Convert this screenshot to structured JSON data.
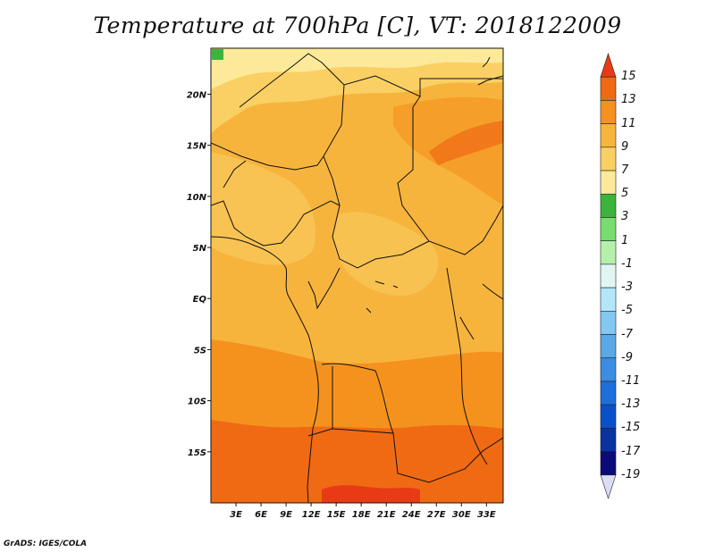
{
  "title": "Temperature at 700hPa [C], VT: 2018122009",
  "credit": "GrADS: IGES/COLA",
  "map": {
    "lat_labels": [
      "20N",
      "15N",
      "10N",
      "5N",
      "EQ",
      "5S",
      "10S",
      "15S"
    ],
    "lon_labels": [
      "3E",
      "6E",
      "9E",
      "12E",
      "15E",
      "18E",
      "21E",
      "24E",
      "27E",
      "30E",
      "33E"
    ],
    "lon_range_deg": [
      0,
      35
    ],
    "lat_range_deg": [
      -20,
      24.5
    ]
  },
  "legend": {
    "labels": [
      "15",
      "13",
      "11",
      "9",
      "7",
      "5",
      "3",
      "1",
      "-1",
      "-3",
      "-5",
      "-7",
      "-9",
      "-11",
      "-13",
      "-15",
      "-17",
      "-19"
    ],
    "colors": [
      "#e83a15",
      "#f06a14",
      "#f5921e",
      "#f7b43d",
      "#fad064",
      "#fce99a",
      "#3cb43c",
      "#78dc6e",
      "#b4f0aa",
      "#e1f5f5",
      "#b4e6fa",
      "#82c8f0",
      "#5aa8e6",
      "#3c8ce1",
      "#1e6edc",
      "#0a50c8",
      "#0a32a0",
      "#0a0a78",
      "#dcdcf5"
    ]
  }
}
